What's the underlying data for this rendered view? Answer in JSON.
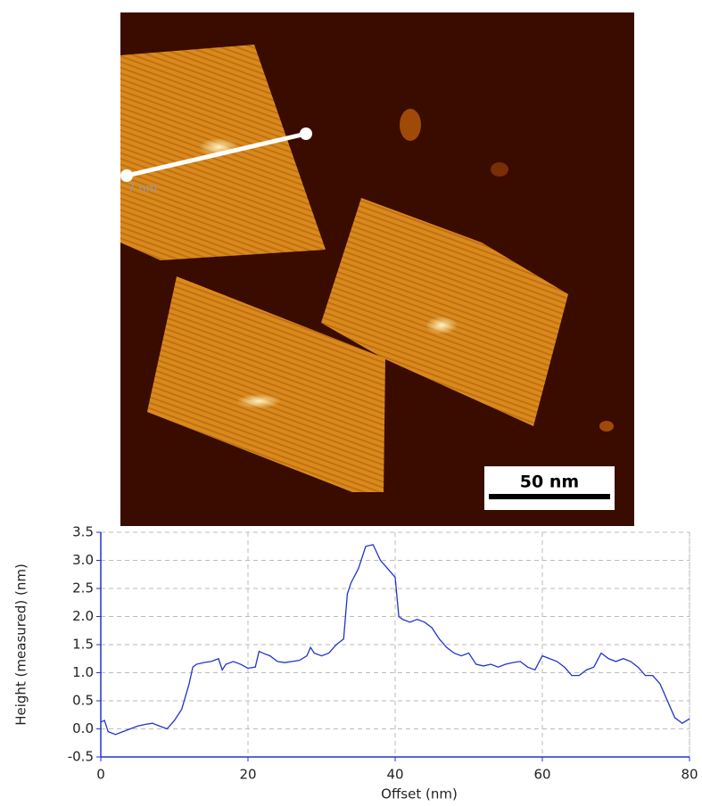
{
  "image": {
    "scale_bar": "50 nm",
    "line_label": "7 nm"
  },
  "chart_data": {
    "type": "line",
    "xlabel": "Offset (nm)",
    "ylabel": "Height (measured) (nm)",
    "x": [
      0,
      0.5,
      1,
      2,
      3,
      4,
      5,
      6,
      7,
      8,
      9,
      10,
      11,
      12,
      12.5,
      13,
      14,
      15,
      16,
      16.5,
      17,
      18,
      19,
      20,
      21,
      21.5,
      22,
      23,
      24,
      25,
      26,
      27,
      28,
      28.5,
      29,
      30,
      31,
      32,
      33,
      33.5,
      34,
      35,
      36,
      37,
      38,
      39,
      40,
      40.5,
      41,
      42,
      43,
      44,
      45,
      46,
      47,
      48,
      49,
      50,
      51,
      52,
      53,
      54,
      55,
      56,
      57,
      58,
      59,
      60,
      61,
      62,
      63,
      64,
      65,
      66,
      67,
      68,
      69,
      70,
      71,
      72,
      73,
      74,
      75,
      76,
      77,
      78,
      79,
      80
    ],
    "series": [
      {
        "color": "#2233cc",
        "values": [
          0.12,
          0.15,
          -0.05,
          -0.1,
          -0.05,
          0.0,
          0.05,
          0.08,
          0.1,
          0.05,
          0.0,
          0.15,
          0.35,
          0.8,
          1.1,
          1.15,
          1.18,
          1.2,
          1.25,
          1.05,
          1.15,
          1.2,
          1.15,
          1.08,
          1.1,
          1.38,
          1.35,
          1.3,
          1.2,
          1.18,
          1.2,
          1.22,
          1.3,
          1.45,
          1.35,
          1.3,
          1.35,
          1.5,
          1.6,
          2.4,
          2.6,
          2.85,
          3.25,
          3.28,
          3.0,
          2.85,
          2.7,
          2.0,
          1.95,
          1.9,
          1.95,
          1.9,
          1.8,
          1.6,
          1.45,
          1.35,
          1.3,
          1.35,
          1.15,
          1.12,
          1.15,
          1.1,
          1.15,
          1.18,
          1.2,
          1.1,
          1.05,
          1.3,
          1.25,
          1.2,
          1.1,
          0.95,
          0.95,
          1.05,
          1.1,
          1.35,
          1.25,
          1.2,
          1.25,
          1.2,
          1.1,
          0.95,
          0.95,
          0.8,
          0.5,
          0.2,
          0.1,
          0.18
        ]
      }
    ],
    "xlim": [
      0,
      80
    ],
    "xticks": [
      0,
      20,
      40,
      60,
      80
    ],
    "ylim": [
      -0.5,
      3.5
    ],
    "yticks": [
      -0.5,
      {
        "value": 0,
        "label": "0.0"
      },
      0.5,
      {
        "value": 1,
        "label": "1.0"
      },
      1.5,
      {
        "value": 2,
        "label": "2.0"
      },
      2.5,
      {
        "value": 3,
        "label": "3.0"
      },
      3.5
    ],
    "grid": true
  }
}
